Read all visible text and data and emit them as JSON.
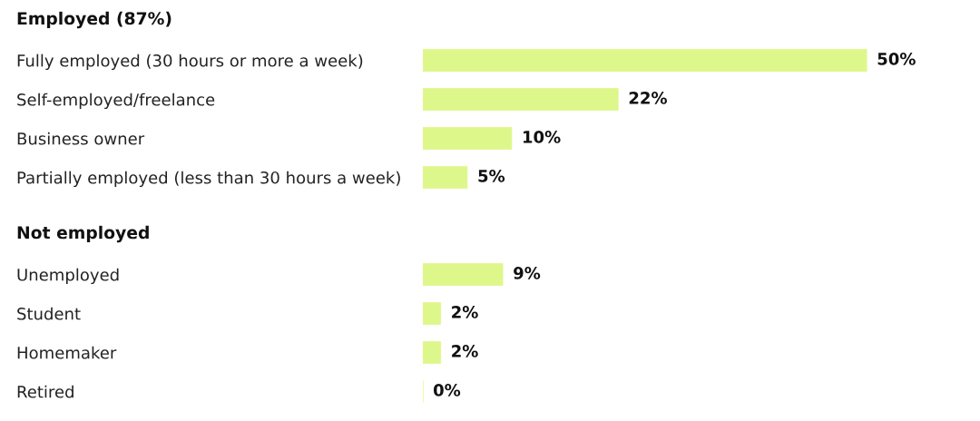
{
  "chart_data": [
    {
      "type": "bar",
      "orientation": "horizontal",
      "title": "Employed (87%)",
      "categories": [
        "Fully employed (30 hours or more a week)",
        "Self-employed/freelance",
        "Business owner",
        "Partially employed (less than 30 hours a week)"
      ],
      "values": [
        50,
        22,
        10,
        5
      ],
      "value_labels": [
        "50%",
        "22%",
        "10%",
        "5%"
      ],
      "color": "#def78b",
      "tick_labels": "y",
      "grid": false
    },
    {
      "type": "bar",
      "orientation": "horizontal",
      "title": "Not employed",
      "categories": [
        "Unemployed",
        "Student",
        "Homemaker",
        "Retired"
      ],
      "values": [
        9,
        2,
        2,
        0
      ],
      "value_labels": [
        "9%",
        "2%",
        "2%",
        "0%"
      ],
      "color": "#def78b",
      "tick_labels": "y",
      "grid": false
    }
  ]
}
